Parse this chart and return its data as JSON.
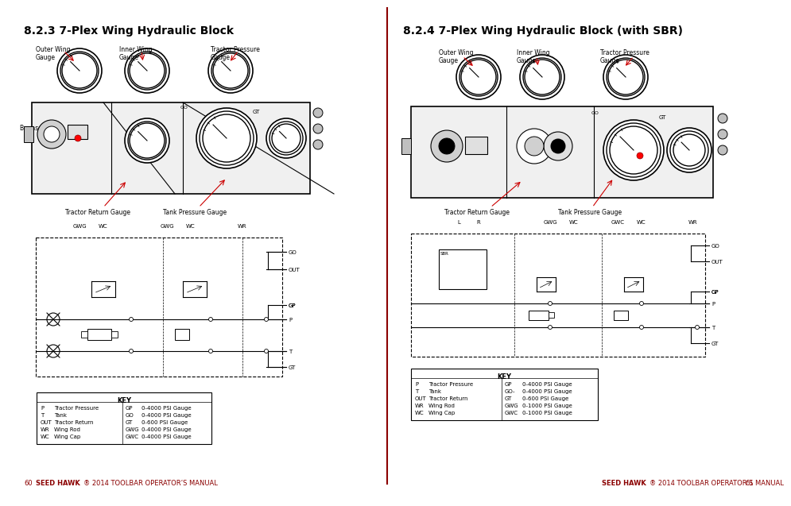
{
  "page_bg": "#ffffff",
  "divider_color": "#8b0000",
  "left_title": "8.2.3 7-Plex Wing Hydraulic Block",
  "right_title": "8.2.4 7-Plex Wing Hydraulic Block (with SBR)",
  "footer_left": "60    SEED HAWK® 2014 TOOLBAR OPERATOR’S MANUAL",
  "footer_right": "SEED HAWK® 2014 TOOLBAR OPERATOR’S MANUAL    61",
  "title_color": "#000000",
  "footer_brand_color": "#8b0000",
  "footer_text_color": "#8b0000",
  "left_labels": {
    "outer_wing": "Outer Wing\nGauge",
    "inner_wing": "Inner Wing\nGauge",
    "tractor_pressure": "Tractor Pressure\nGauge",
    "bypass_valve": "Bypass Valve",
    "tractor_return": "Tractor Return Gauge",
    "tank_pressure": "Tank Pressure Gauge"
  },
  "right_labels": {
    "outer_wing": "Outer Wing\nGauge",
    "inner_wing": "Inner Wing\nGauge",
    "tractor_pressure": "Tractor Pressure\nGauge",
    "tractor_return": "Tractor Return Gauge",
    "tank_pressure": "Tank Pressure Gauge"
  },
  "left_key": {
    "title": "KEY",
    "left_col": [
      "P",
      "T",
      "OUT",
      "WR",
      "WC"
    ],
    "left_desc": [
      "Tractor Pressure",
      "Tank",
      "Tractor Return",
      "Wing Rod",
      "Wing Cap"
    ],
    "right_col": [
      "GP",
      "GO",
      "GT",
      "GWG",
      "GWC"
    ],
    "right_desc": [
      "0-4000 PSI Gauge",
      "0-4000 PSI Gauge",
      "0-600 PSI Gauge",
      "0-4000 PSI Gauge",
      "0-4000 PSI Gauge"
    ]
  },
  "right_key": {
    "title": "KEY",
    "left_col": [
      "P",
      "T",
      "OUT",
      "WR",
      "WC"
    ],
    "left_desc": [
      "Tractor Pressure",
      "Tank",
      "Tractor Return",
      "Wing Rod",
      "Wing Cap"
    ],
    "right_col": [
      "GP",
      "GO-",
      "GT",
      "GWG",
      "GWC"
    ],
    "right_desc": [
      "0-4000 PSI Gauge",
      "0-4000 PSI Gauge",
      "0-600 PSI Gauge",
      "0-1000 PSI Gauge",
      "0-1000 PSI Gauge"
    ]
  },
  "left_schematic_labels": [
    "GWG",
    "WC",
    "GWG",
    "WC",
    "WR"
  ],
  "left_schematic_right_labels": [
    "GO",
    "OUT",
    "GP",
    "P",
    "T",
    "GT"
  ],
  "right_schematic_labels": [
    "L",
    "R",
    "GWG",
    "WC",
    "GWC",
    "WC",
    "WR"
  ],
  "right_schematic_right_labels": [
    "GO",
    "OUT",
    "GP",
    "P",
    "T",
    "GT"
  ]
}
